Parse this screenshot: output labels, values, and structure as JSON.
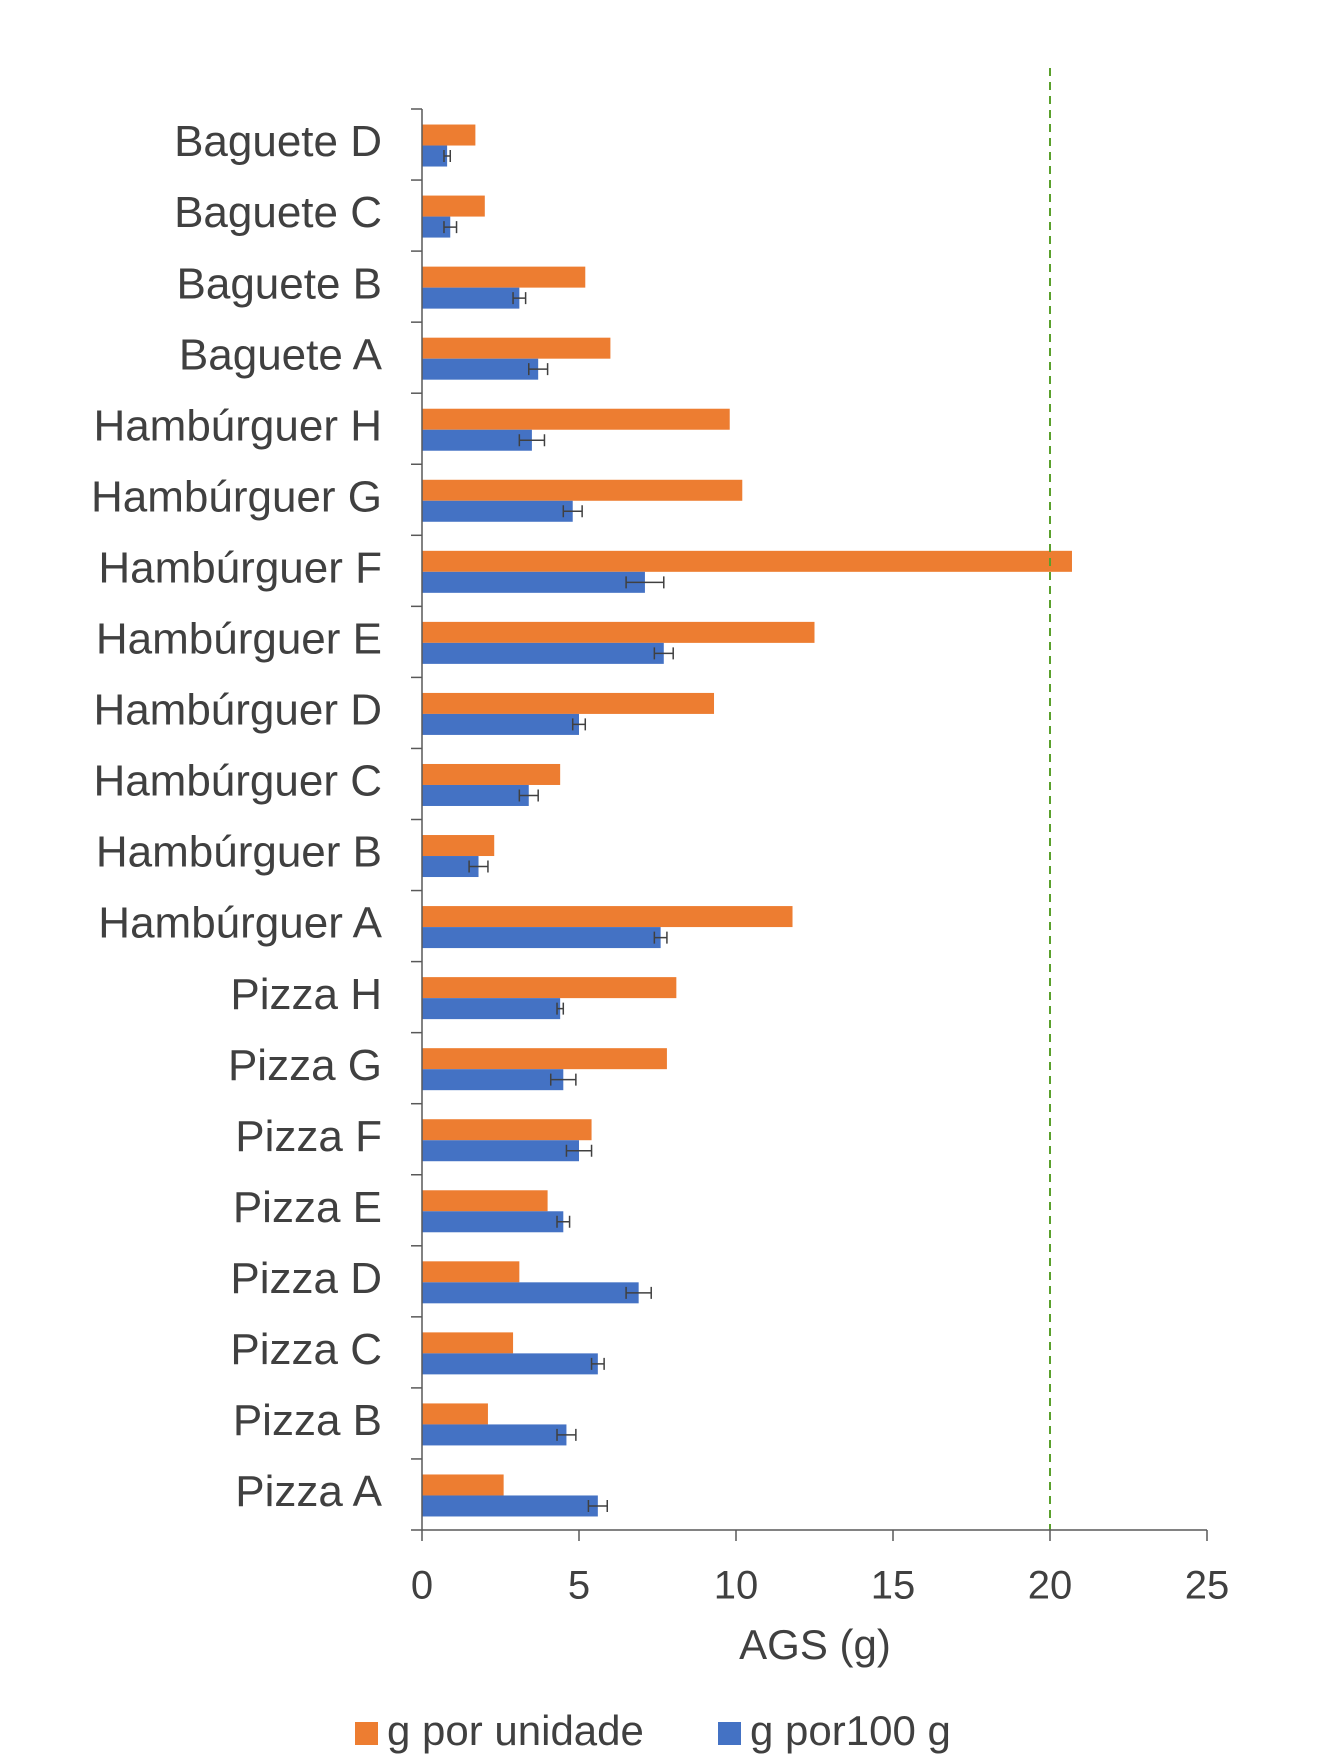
{
  "chart_data": {
    "type": "barh",
    "x_label": "AGS (g)",
    "categories": [
      "Pizza A",
      "Pizza B",
      "Pizza C",
      "Pizza D",
      "Pizza E",
      "Pizza F",
      "Pizza G",
      "Pizza H",
      "Hambúrguer A",
      "Hambúrguer B",
      "Hambúrguer C",
      "Hambúrguer D",
      "Hambúrguer E",
      "Hambúrguer F",
      "Hambúrguer G",
      "Hambúrguer H",
      "Baguete A",
      "Baguete B",
      "Baguete C",
      "Baguete D"
    ],
    "series": [
      {
        "name": "g por unidade",
        "color": "#ed7d31",
        "values": [
          2.6,
          2.1,
          2.9,
          3.1,
          4.0,
          5.4,
          7.8,
          8.1,
          11.8,
          2.3,
          4.4,
          9.3,
          12.5,
          20.7,
          10.2,
          9.8,
          6.0,
          5.2,
          2.0,
          1.7
        ]
      },
      {
        "name": "g por100 g",
        "color": "#4472c4",
        "values": [
          5.6,
          4.6,
          5.6,
          6.9,
          4.5,
          5.0,
          4.5,
          4.4,
          7.6,
          1.8,
          3.4,
          5.0,
          7.7,
          7.1,
          4.8,
          3.5,
          3.7,
          3.1,
          0.9,
          0.8
        ],
        "errors": [
          0.3,
          0.3,
          0.2,
          0.4,
          0.2,
          0.4,
          0.4,
          0.1,
          0.2,
          0.3,
          0.3,
          0.2,
          0.3,
          0.6,
          0.3,
          0.4,
          0.3,
          0.2,
          0.2,
          0.1
        ]
      }
    ],
    "xlim": [
      0,
      25
    ],
    "xticks": [
      0,
      5,
      10,
      15,
      20,
      25
    ],
    "reference_line": {
      "value": 20,
      "color": "#5aa02c"
    },
    "legend": "bottom"
  }
}
